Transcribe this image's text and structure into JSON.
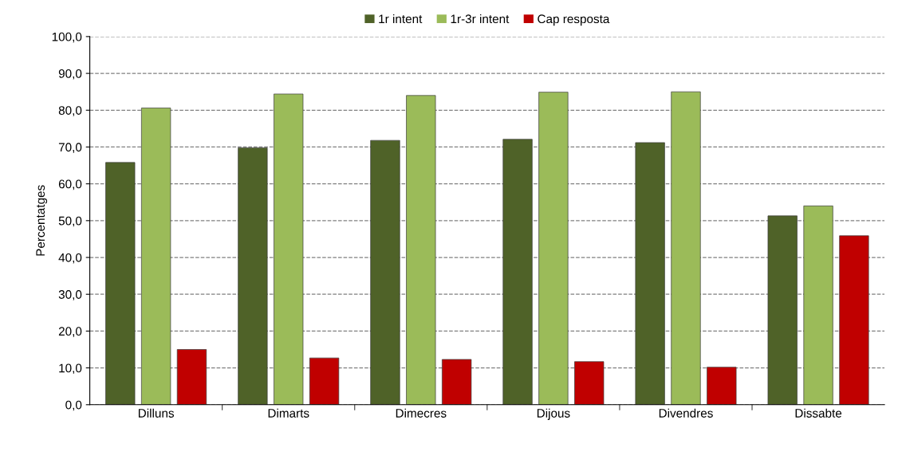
{
  "chart_data": {
    "type": "bar",
    "ylabel": "Percentatges",
    "categories": [
      "Dilluns",
      "Dimarts",
      "Dimecres",
      "Dijous",
      "Divendres",
      "Dissabte"
    ],
    "series": [
      {
        "name": "1r intent",
        "color": "#4f6228",
        "values": [
          65.8,
          69.8,
          71.8,
          72.1,
          71.2,
          51.3
        ]
      },
      {
        "name": "1r-3r intent",
        "color": "#9bbb59",
        "values": [
          80.6,
          84.4,
          84.0,
          84.9,
          85.0,
          54.0
        ]
      },
      {
        "name": "Cap resposta",
        "color": "#c00000",
        "values": [
          15.0,
          12.7,
          12.3,
          11.7,
          10.2,
          45.9
        ]
      }
    ],
    "ylim": [
      0,
      100
    ],
    "yticks": [
      {
        "value": 0,
        "label": "0,0"
      },
      {
        "value": 10,
        "label": "10,0"
      },
      {
        "value": 20,
        "label": "20,0"
      },
      {
        "value": 30,
        "label": "30,0"
      },
      {
        "value": 40,
        "label": "40,0"
      },
      {
        "value": 50,
        "label": "50,0"
      },
      {
        "value": 60,
        "label": "60,0"
      },
      {
        "value": 70,
        "label": "70,0"
      },
      {
        "value": 80,
        "label": "80,0"
      },
      {
        "value": 90,
        "label": "90,0"
      },
      {
        "value": 100,
        "label": "100,0"
      }
    ],
    "grid": "y",
    "legend": "top"
  }
}
